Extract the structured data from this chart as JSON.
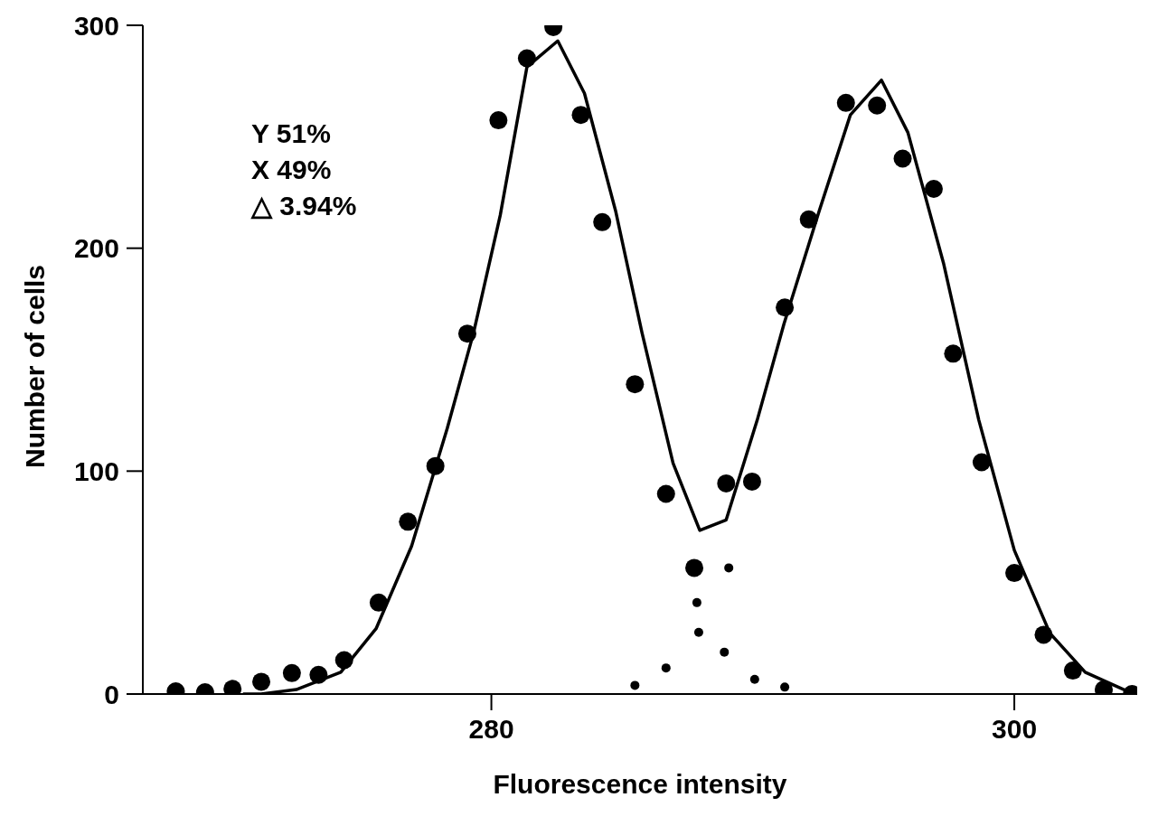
{
  "chart_data": {
    "type": "scatter",
    "xlabel": "Fluorescence intensity",
    "ylabel": "Number of cells",
    "xlim": [
      266.67,
      304.7
    ],
    "ylim": [
      0,
      300
    ],
    "xticks": [
      280,
      300
    ],
    "yticks": [
      0,
      100,
      200,
      300
    ],
    "grid": false,
    "legend": false,
    "marker": "circle",
    "annotations": [
      "Y 51%",
      "X 49%",
      "△ 3.94%"
    ],
    "series": [
      {
        "type": "scatter",
        "color": "#000000",
        "x": [
          267.93,
          269.05,
          270.1,
          271.2,
          272.37,
          273.39,
          274.37,
          275.69,
          276.81,
          277.86,
          279.08,
          280.27,
          281.36,
          282.37,
          283.42,
          284.24,
          285.49,
          286.68,
          287.76,
          288.98,
          289.97,
          291.22,
          292.14,
          293.56,
          294.75,
          295.73,
          296.92,
          297.66,
          298.75,
          300,
          301.12,
          302.24,
          303.42,
          304.5
        ],
        "values": [
          1.2,
          0.8,
          2.3,
          5.5,
          9.4,
          8.6,
          15.2,
          41,
          77.3,
          102.3,
          161.7,
          257.4,
          285.2,
          299.2,
          259.8,
          211.7,
          139,
          89.8,
          56.6,
          94.5,
          95.3,
          173.4,
          212.9,
          265.2,
          264,
          240.2,
          226.6,
          152.7,
          104,
          54.3,
          26.6,
          10.5,
          2,
          0
        ]
      },
      {
        "type": "scatter",
        "color": "#000000",
        "x": [
          285.49,
          286.68,
          287.86,
          287.93,
          288.91,
          289.08,
          290.07,
          291.22
        ],
        "values": [
          3.9,
          11.7,
          41,
          27.7,
          18.8,
          56.6,
          6.6,
          3.1
        ]
      },
      {
        "type": "line",
        "color": "#000000",
        "marker": "none",
        "x": [
          270.5,
          271.19,
          272.54,
          274.24,
          275.59,
          276.95,
          278.31,
          279.32,
          280.34,
          281.36,
          282.54,
          283.56,
          284.75,
          285.76,
          286.95,
          287.97,
          288.98,
          290.17,
          291.19,
          292.54,
          293.73,
          294.92,
          295.93,
          297.29,
          298.64,
          300,
          301.36,
          302.71,
          304.41
        ],
        "values": [
          0,
          0,
          2,
          9.8,
          29.3,
          66.4,
          119.1,
          162.1,
          214.8,
          281.3,
          293,
          269.5,
          216.8,
          162.1,
          103.5,
          73.4,
          78.1,
          123,
          166,
          216.8,
          259.8,
          275.4,
          251.9,
          193.4,
          123,
          64.5,
          27.3,
          9.8,
          0.8
        ]
      }
    ]
  }
}
